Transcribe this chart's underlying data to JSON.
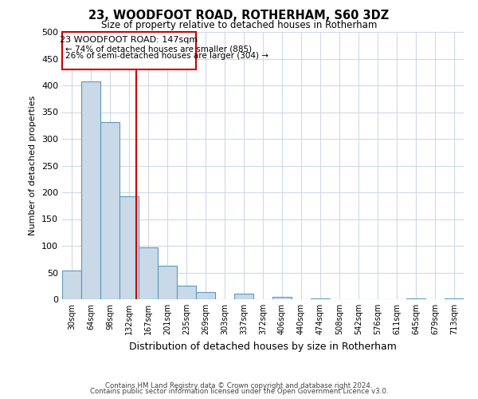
{
  "title": "23, WOODFOOT ROAD, ROTHERHAM, S60 3DZ",
  "subtitle": "Size of property relative to detached houses in Rotherham",
  "xlabel": "Distribution of detached houses by size in Rotherham",
  "ylabel": "Number of detached properties",
  "bin_labels": [
    "30sqm",
    "64sqm",
    "98sqm",
    "132sqm",
    "167sqm",
    "201sqm",
    "235sqm",
    "269sqm",
    "303sqm",
    "337sqm",
    "372sqm",
    "406sqm",
    "440sqm",
    "474sqm",
    "508sqm",
    "542sqm",
    "576sqm",
    "611sqm",
    "645sqm",
    "679sqm",
    "713sqm"
  ],
  "bar_heights": [
    53,
    407,
    332,
    193,
    97,
    63,
    25,
    14,
    0,
    10,
    0,
    5,
    0,
    2,
    0,
    0,
    0,
    0,
    2,
    0,
    2
  ],
  "bar_color": "#c9d9e8",
  "bar_edge_color": "#5a9abf",
  "ylim": [
    0,
    500
  ],
  "yticks": [
    0,
    50,
    100,
    150,
    200,
    250,
    300,
    350,
    400,
    450,
    500
  ],
  "property_line_x": 3.88,
  "property_line_color": "#cc0000",
  "annotation_title": "23 WOODFOOT ROAD: 147sqm",
  "annotation_line1": "← 74% of detached houses are smaller (885)",
  "annotation_line2": "26% of semi-detached houses are larger (304) →",
  "annotation_box_color": "#cc0000",
  "footer_line1": "Contains HM Land Registry data © Crown copyright and database right 2024.",
  "footer_line2": "Contains public sector information licensed under the Open Government Licence v3.0.",
  "background_color": "#ffffff",
  "grid_color": "#d0d8e8"
}
